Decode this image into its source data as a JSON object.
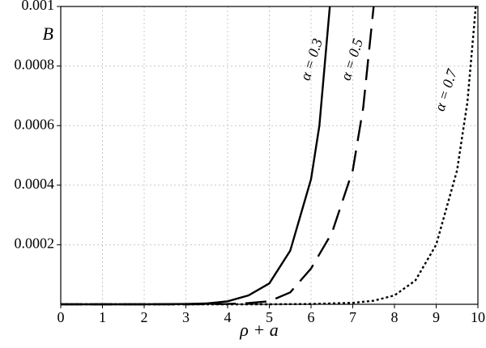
{
  "chart_data": {
    "type": "line",
    "xlabel": "ρ + a",
    "ylabel": "B",
    "xlim": [
      0,
      10
    ],
    "xticks": [
      0,
      1,
      2,
      3,
      4,
      5,
      6,
      7,
      8,
      9,
      10
    ],
    "ylim": [
      0,
      0.001
    ],
    "yticks": [
      0.0002,
      0.0004,
      0.0006,
      0.0008,
      0.001
    ],
    "grid": true,
    "series": [
      {
        "name": "α = 0.3",
        "color": "#000000",
        "dash": "solid",
        "x": [
          0,
          1,
          2,
          3,
          3.5,
          4,
          4.5,
          5,
          5.5,
          6,
          6.2,
          6.45
        ],
        "values": [
          0,
          0,
          0,
          1e-06,
          3e-06,
          1e-05,
          3e-05,
          7e-05,
          0.00018,
          0.00042,
          0.0006,
          0.001
        ]
      },
      {
        "name": "α = 0.5",
        "color": "#000000",
        "dash": "dashed",
        "x": [
          0,
          1,
          2,
          3,
          4,
          4.5,
          5,
          5.5,
          6,
          6.5,
          7,
          7.25,
          7.5
        ],
        "values": [
          0,
          0,
          0,
          0,
          1e-06,
          4e-06,
          1e-05,
          4e-05,
          0.00012,
          0.00024,
          0.00045,
          0.00066,
          0.001
        ]
      },
      {
        "name": "α = 0.7",
        "color": "#000000",
        "dash": "dotted",
        "x": [
          0,
          2,
          4,
          5,
          6,
          7,
          7.5,
          8,
          8.5,
          9,
          9.5,
          9.75,
          9.95
        ],
        "values": [
          0,
          0,
          0,
          0,
          1e-06,
          5e-06,
          1.2e-05,
          3e-05,
          8e-05,
          0.0002,
          0.00045,
          0.00068,
          0.001
        ]
      }
    ]
  }
}
